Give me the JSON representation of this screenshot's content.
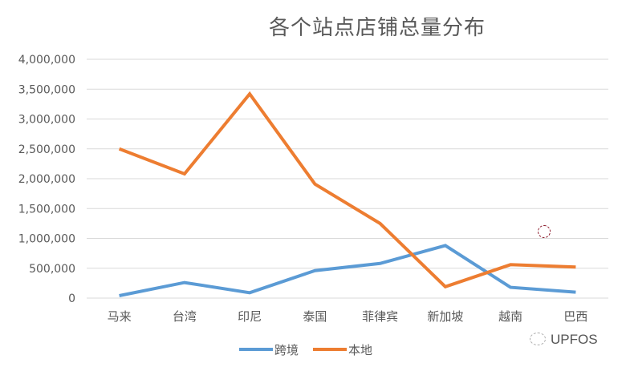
{
  "chart_data": {
    "type": "line",
    "title": "各个站点店铺总量分布",
    "xlabel": "",
    "ylabel": "",
    "categories": [
      "马来",
      "台湾",
      "印尼",
      "泰国",
      "菲律宾",
      "新加坡",
      "越南",
      "巴西"
    ],
    "series": [
      {
        "name": "跨境",
        "color": "#5B9BD5",
        "values": [
          40000,
          260000,
          90000,
          460000,
          580000,
          880000,
          180000,
          100000
        ]
      },
      {
        "name": "本地",
        "color": "#ED7D31",
        "values": [
          2500000,
          2080000,
          3420000,
          1910000,
          1250000,
          190000,
          560000,
          520000
        ]
      }
    ],
    "ylim": [
      0,
      4000000
    ],
    "yticks": [
      "0",
      "500,000",
      "1,000,000",
      "1,500,000",
      "2,000,000",
      "2,500,000",
      "3,000,000",
      "3,500,000",
      "4,000,000"
    ],
    "grid": true,
    "legend_position": "bottom"
  },
  "watermark": {
    "text": "UPFOS"
  }
}
